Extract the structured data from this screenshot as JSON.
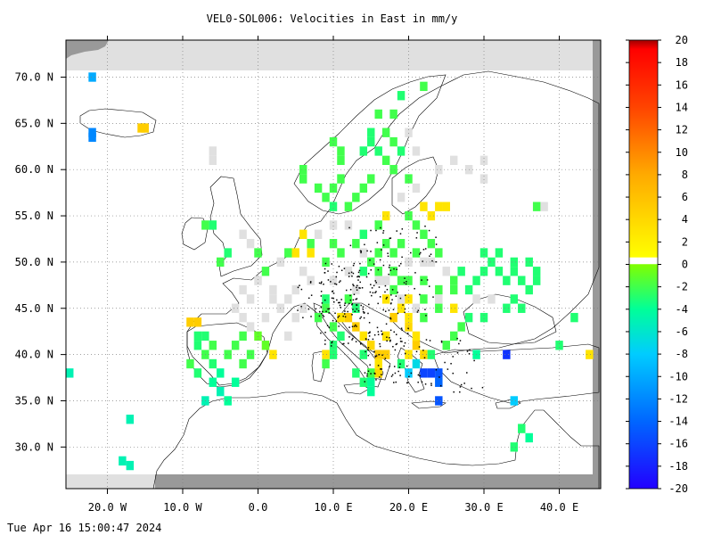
{
  "title": "VEL0-SOL006: Velocities in East in mm/y",
  "timestamp": "Tue Apr 16 15:00:47 2024",
  "map": {
    "lon_range": [
      -25.5,
      45.5
    ],
    "lat_range": [
      25.5,
      74.0
    ],
    "lat_ticks": [
      {
        "value": 30,
        "label": "30.0 N"
      },
      {
        "value": 35,
        "label": "35.0 N"
      },
      {
        "value": 40,
        "label": "40.0 N"
      },
      {
        "value": 45,
        "label": "45.0 N"
      },
      {
        "value": 50,
        "label": "50.0 N"
      },
      {
        "value": 55,
        "label": "55.0 N"
      },
      {
        "value": 60,
        "label": "60.0 N"
      },
      {
        "value": 65,
        "label": "65.0 N"
      },
      {
        "value": 70,
        "label": "70.0 N"
      }
    ],
    "lon_ticks": [
      {
        "value": -20,
        "label": "20.0 W"
      },
      {
        "value": -10,
        "label": "10.0 W"
      },
      {
        "value": 0,
        "label": "0.0"
      },
      {
        "value": 10,
        "label": "10.0 E"
      },
      {
        "value": 20,
        "label": "20.0 E"
      },
      {
        "value": 30,
        "label": "30.0 E"
      },
      {
        "value": 40,
        "label": "40.0 E"
      }
    ],
    "grid": true,
    "colors": {
      "land_mask": "#999999",
      "no_data": "#e0e0e0",
      "grid": "#808080",
      "coast": "#000000"
    }
  },
  "colorbar": {
    "range": [
      -20,
      20
    ],
    "labels": [
      20,
      18,
      16,
      14,
      12,
      10,
      8,
      6,
      4,
      2,
      0,
      -2,
      -4,
      -6,
      -8,
      -10,
      -12,
      -14,
      -16,
      -18,
      -20
    ],
    "label_text": [
      "20",
      "18",
      "16",
      "14",
      "12",
      "10",
      "8",
      "6",
      "4",
      "2",
      "0",
      "-2",
      "-4",
      "-6",
      "-8",
      "-10",
      "-12",
      "-14",
      "-16",
      "-18",
      "-20"
    ],
    "stops": [
      "#0000ff",
      "#00ccff",
      "#00ff80",
      "#80ff00",
      "#ffff00",
      "#ff9900",
      "#ff0000",
      "#cc0000"
    ]
  },
  "chart_data": {
    "type": "heatmap",
    "title": "VEL0-SOL006: Velocities in East in mm/y",
    "xlabel": "",
    "ylabel": "",
    "xlim": [
      -25.5,
      45.5
    ],
    "ylim": [
      25.5,
      74.0
    ],
    "value_range": [
      -20,
      20
    ],
    "cell_size_deg": [
      1.0,
      1.0
    ],
    "cells": [
      {
        "lon": -22,
        "lat": 70,
        "v": -10
      },
      {
        "lon": -22,
        "lat": 64,
        "v": -12
      },
      {
        "lon": -22,
        "lat": 63.5,
        "v": -12
      },
      {
        "lon": -15,
        "lat": 64.5,
        "v": 5
      },
      {
        "lon": -15.5,
        "lat": 64.5,
        "v": 5
      },
      {
        "lon": -25,
        "lat": 38,
        "v": -5
      },
      {
        "lon": -17,
        "lat": 33,
        "v": -5
      },
      {
        "lon": -18,
        "lat": 28.5,
        "v": -5
      },
      {
        "lon": -17,
        "lat": 28,
        "v": -5
      },
      {
        "lon": -9,
        "lat": 43.5,
        "v": 5
      },
      {
        "lon": -8,
        "lat": 43.5,
        "v": 5
      },
      {
        "lon": -8,
        "lat": 42,
        "v": -3
      },
      {
        "lon": -8,
        "lat": 41,
        "v": -3
      },
      {
        "lon": -9,
        "lat": 39,
        "v": -2
      },
      {
        "lon": -8,
        "lat": 38,
        "v": -3
      },
      {
        "lon": -7,
        "lat": 42,
        "v": -3
      },
      {
        "lon": -6,
        "lat": 41,
        "v": -2
      },
      {
        "lon": -7,
        "lat": 40,
        "v": -2
      },
      {
        "lon": -6,
        "lat": 39,
        "v": -3
      },
      {
        "lon": -5,
        "lat": 38,
        "v": -4
      },
      {
        "lon": -6,
        "lat": 37,
        "v": -4
      },
      {
        "lon": -5,
        "lat": 36,
        "v": -5
      },
      {
        "lon": -3,
        "lat": 37,
        "v": -4
      },
      {
        "lon": -4,
        "lat": 40,
        "v": -2
      },
      {
        "lon": -3,
        "lat": 41,
        "v": -2
      },
      {
        "lon": -2,
        "lat": 39,
        "v": -2
      },
      {
        "lon": -1,
        "lat": 40,
        "v": -2
      },
      {
        "lon": -2,
        "lat": 42,
        "v": -2
      },
      {
        "lon": 0,
        "lat": 42,
        "v": -1
      },
      {
        "lon": 1,
        "lat": 41,
        "v": -1
      },
      {
        "lon": -7,
        "lat": 35,
        "v": -5
      },
      {
        "lon": -4,
        "lat": 35,
        "v": -4
      },
      {
        "lon": 2,
        "lat": 40,
        "v": 3
      },
      {
        "lon": -5,
        "lat": 50,
        "v": -2
      },
      {
        "lon": -4,
        "lat": 51,
        "v": -3
      },
      {
        "lon": -6,
        "lat": 54,
        "v": -3
      },
      {
        "lon": -7,
        "lat": 54,
        "v": -2
      },
      {
        "lon": 0,
        "lat": 51,
        "v": -2
      },
      {
        "lon": 1,
        "lat": 49,
        "v": -2
      },
      {
        "lon": 4,
        "lat": 51,
        "v": -2
      },
      {
        "lon": 6,
        "lat": 53,
        "v": 3
      },
      {
        "lon": 5,
        "lat": 51,
        "v": 3
      },
      {
        "lon": 7,
        "lat": 51,
        "v": 3
      },
      {
        "lon": 7,
        "lat": 52,
        "v": -2
      },
      {
        "lon": 10,
        "lat": 52,
        "v": -2
      },
      {
        "lon": 9,
        "lat": 50,
        "v": -2
      },
      {
        "lon": 11,
        "lat": 51,
        "v": -2
      },
      {
        "lon": 13,
        "lat": 52,
        "v": -2
      },
      {
        "lon": 14,
        "lat": 53,
        "v": -3
      },
      {
        "lon": 16,
        "lat": 54,
        "v": -2
      },
      {
        "lon": 17,
        "lat": 55,
        "v": 3
      },
      {
        "lon": 20,
        "lat": 55,
        "v": -2
      },
      {
        "lon": 22,
        "lat": 56,
        "v": 3
      },
      {
        "lon": 23,
        "lat": 55,
        "v": 3
      },
      {
        "lon": 24,
        "lat": 56,
        "v": 3
      },
      {
        "lon": 25,
        "lat": 56,
        "v": 3
      },
      {
        "lon": 21,
        "lat": 54,
        "v": -2
      },
      {
        "lon": 22,
        "lat": 53,
        "v": -2
      },
      {
        "lon": 23,
        "lat": 52,
        "v": -2
      },
      {
        "lon": 24,
        "lat": 51,
        "v": -2
      },
      {
        "lon": 21,
        "lat": 51,
        "v": -2
      },
      {
        "lon": 19,
        "lat": 52,
        "v": -2
      },
      {
        "lon": 18,
        "lat": 51,
        "v": -2
      },
      {
        "lon": 17,
        "lat": 52,
        "v": -2
      },
      {
        "lon": 16,
        "lat": 51,
        "v": -2
      },
      {
        "lon": 15,
        "lat": 50,
        "v": -2
      },
      {
        "lon": 14,
        "lat": 49,
        "v": -3
      },
      {
        "lon": 16,
        "lat": 49,
        "v": -2
      },
      {
        "lon": 18,
        "lat": 49,
        "v": -2
      },
      {
        "lon": 20,
        "lat": 48,
        "v": -2
      },
      {
        "lon": 22,
        "lat": 48,
        "v": -2
      },
      {
        "lon": 24,
        "lat": 47,
        "v": -2
      },
      {
        "lon": 26,
        "lat": 47,
        "v": -2
      },
      {
        "lon": 26,
        "lat": 48,
        "v": -2
      },
      {
        "lon": 27,
        "lat": 49,
        "v": -3
      },
      {
        "lon": 28,
        "lat": 47,
        "v": -3
      },
      {
        "lon": 29,
        "lat": 48,
        "v": -3
      },
      {
        "lon": 30,
        "lat": 49,
        "v": -3
      },
      {
        "lon": 31,
        "lat": 50,
        "v": -3
      },
      {
        "lon": 32,
        "lat": 49,
        "v": -3
      },
      {
        "lon": 33,
        "lat": 48,
        "v": -3
      },
      {
        "lon": 34,
        "lat": 49,
        "v": -3
      },
      {
        "lon": 35,
        "lat": 48,
        "v": -3
      },
      {
        "lon": 36,
        "lat": 47,
        "v": -3
      },
      {
        "lon": 34,
        "lat": 46,
        "v": -3
      },
      {
        "lon": 33,
        "lat": 45,
        "v": -3
      },
      {
        "lon": 35,
        "lat": 45,
        "v": -3
      },
      {
        "lon": 36,
        "lat": 50,
        "v": -3
      },
      {
        "lon": 37,
        "lat": 49,
        "v": -3
      },
      {
        "lon": 37,
        "lat": 48,
        "v": -3
      },
      {
        "lon": 30,
        "lat": 51,
        "v": -3
      },
      {
        "lon": 32,
        "lat": 51,
        "v": -3
      },
      {
        "lon": 34,
        "lat": 50,
        "v": -3
      },
      {
        "lon": 37,
        "lat": 56,
        "v": -2
      },
      {
        "lon": 42,
        "lat": 44,
        "v": -3
      },
      {
        "lon": 40,
        "lat": 41,
        "v": -3
      },
      {
        "lon": 44,
        "lat": 40,
        "v": 3
      },
      {
        "lon": 10,
        "lat": 63,
        "v": -2
      },
      {
        "lon": 11,
        "lat": 62,
        "v": -2
      },
      {
        "lon": 11,
        "lat": 61,
        "v": -2
      },
      {
        "lon": 11,
        "lat": 59,
        "v": -2
      },
      {
        "lon": 10,
        "lat": 58,
        "v": -2
      },
      {
        "lon": 9,
        "lat": 57,
        "v": -2
      },
      {
        "lon": 10,
        "lat": 56,
        "v": -3
      },
      {
        "lon": 12,
        "lat": 56,
        "v": -2
      },
      {
        "lon": 13,
        "lat": 57,
        "v": -2
      },
      {
        "lon": 14,
        "lat": 58,
        "v": -2
      },
      {
        "lon": 15,
        "lat": 59,
        "v": -2
      },
      {
        "lon": 14,
        "lat": 62,
        "v": -3
      },
      {
        "lon": 15,
        "lat": 63,
        "v": -3
      },
      {
        "lon": 15,
        "lat": 64,
        "v": -3
      },
      {
        "lon": 16,
        "lat": 62,
        "v": -3
      },
      {
        "lon": 17,
        "lat": 64,
        "v": -2
      },
      {
        "lon": 18,
        "lat": 63,
        "v": -2
      },
      {
        "lon": 17,
        "lat": 61,
        "v": -2
      },
      {
        "lon": 18,
        "lat": 60,
        "v": -2
      },
      {
        "lon": 19,
        "lat": 62,
        "v": -3
      },
      {
        "lon": 18,
        "lat": 66,
        "v": -2
      },
      {
        "lon": 19,
        "lat": 68,
        "v": -3
      },
      {
        "lon": 22,
        "lat": 69,
        "v": -2
      },
      {
        "lon": 6,
        "lat": 60,
        "v": -2
      },
      {
        "lon": 6,
        "lat": 59,
        "v": -2
      },
      {
        "lon": 8,
        "lat": 58,
        "v": -2
      },
      {
        "lon": 16,
        "lat": 66,
        "v": -2
      },
      {
        "lon": 20,
        "lat": 59,
        "v": -2
      },
      {
        "lon": 12,
        "lat": 46,
        "v": -2
      },
      {
        "lon": 13,
        "lat": 45,
        "v": -3
      },
      {
        "lon": 11,
        "lat": 44,
        "v": 3
      },
      {
        "lon": 12,
        "lat": 44,
        "v": 5
      },
      {
        "lon": 13,
        "lat": 43,
        "v": 5
      },
      {
        "lon": 14,
        "lat": 42,
        "v": 3
      },
      {
        "lon": 15,
        "lat": 41,
        "v": 4
      },
      {
        "lon": 16,
        "lat": 40,
        "v": 5
      },
      {
        "lon": 17,
        "lat": 40,
        "v": 5
      },
      {
        "lon": 16,
        "lat": 39,
        "v": 3
      },
      {
        "lon": 16,
        "lat": 38,
        "v": 4
      },
      {
        "lon": 15,
        "lat": 38,
        "v": -2
      },
      {
        "lon": 14,
        "lat": 37,
        "v": -3
      },
      {
        "lon": 15,
        "lat": 37,
        "v": -4
      },
      {
        "lon": 13,
        "lat": 38,
        "v": -3
      },
      {
        "lon": 10,
        "lat": 41,
        "v": -3
      },
      {
        "lon": 11,
        "lat": 42,
        "v": -3
      },
      {
        "lon": 10,
        "lat": 40,
        "v": -3
      },
      {
        "lon": 9,
        "lat": 40,
        "v": 3
      },
      {
        "lon": 9,
        "lat": 39,
        "v": -2
      },
      {
        "lon": 10,
        "lat": 43,
        "v": -2
      },
      {
        "lon": 8,
        "lat": 44,
        "v": -2
      },
      {
        "lon": 9,
        "lat": 45,
        "v": -2
      },
      {
        "lon": 14,
        "lat": 40,
        "v": -3
      },
      {
        "lon": 15,
        "lat": 36,
        "v": -4
      },
      {
        "lon": 17,
        "lat": 42,
        "v": 3
      },
      {
        "lon": 18,
        "lat": 44,
        "v": 5
      },
      {
        "lon": 19,
        "lat": 45,
        "v": 3
      },
      {
        "lon": 20,
        "lat": 44,
        "v": 3
      },
      {
        "lon": 20,
        "lat": 43,
        "v": 4
      },
      {
        "lon": 21,
        "lat": 42,
        "v": 3
      },
      {
        "lon": 21,
        "lat": 41,
        "v": 5
      },
      {
        "lon": 20,
        "lat": 40,
        "v": 3
      },
      {
        "lon": 22,
        "lat": 40,
        "v": 4
      },
      {
        "lon": 21,
        "lat": 39,
        "v": -7
      },
      {
        "lon": 22,
        "lat": 38,
        "v": -16
      },
      {
        "lon": 23,
        "lat": 38,
        "v": -16
      },
      {
        "lon": 24,
        "lat": 38,
        "v": -15
      },
      {
        "lon": 24,
        "lat": 37,
        "v": -14
      },
      {
        "lon": 20,
        "lat": 38,
        "v": -8
      },
      {
        "lon": 19,
        "lat": 39,
        "v": -3
      },
      {
        "lon": 23,
        "lat": 40,
        "v": -3
      },
      {
        "lon": 24,
        "lat": 35,
        "v": -15
      },
      {
        "lon": 25,
        "lat": 41,
        "v": -2
      },
      {
        "lon": 26,
        "lat": 42,
        "v": -2
      },
      {
        "lon": 27,
        "lat": 43,
        "v": -2
      },
      {
        "lon": 22,
        "lat": 46,
        "v": -2
      },
      {
        "lon": 24,
        "lat": 45,
        "v": -2
      },
      {
        "lon": 26,
        "lat": 45,
        "v": 3
      },
      {
        "lon": 29,
        "lat": 40,
        "v": -4
      },
      {
        "lon": 33,
        "lat": 40,
        "v": -17
      },
      {
        "lon": 34,
        "lat": 35,
        "v": -8
      },
      {
        "lon": 35,
        "lat": 32,
        "v": -3
      },
      {
        "lon": 36,
        "lat": 31,
        "v": -4
      },
      {
        "lon": 34,
        "lat": 30,
        "v": -3
      },
      {
        "lon": 30,
        "lat": 44,
        "v": -3
      },
      {
        "lon": 28,
        "lat": 44,
        "v": -3
      },
      {
        "lon": 19,
        "lat": 48,
        "v": -2
      },
      {
        "lon": 18,
        "lat": 47,
        "v": -2
      },
      {
        "lon": 17,
        "lat": 46,
        "v": 3
      },
      {
        "lon": 20,
        "lat": 46,
        "v": 3
      },
      {
        "lon": 22,
        "lat": 44,
        "v": -2
      },
      {
        "lon": 9,
        "lat": 46,
        "v": -3
      }
    ],
    "no_data_cells": [
      {
        "lon": -6,
        "lat": 62
      },
      {
        "lon": -6,
        "lat": 61
      },
      {
        "lon": 38,
        "lat": 56
      },
      {
        "lon": 30,
        "lat": 61
      },
      {
        "lon": 30,
        "lat": 59
      },
      {
        "lon": 5,
        "lat": 47
      },
      {
        "lon": 4,
        "lat": 46
      },
      {
        "lon": 3,
        "lat": 45
      },
      {
        "lon": 2,
        "lat": 47
      },
      {
        "lon": 6,
        "lat": 49
      },
      {
        "lon": 3,
        "lat": 50
      },
      {
        "lon": -1,
        "lat": 46
      },
      {
        "lon": 1,
        "lat": 44
      },
      {
        "lon": 2,
        "lat": 46
      },
      {
        "lon": 7,
        "lat": 48
      },
      {
        "lon": -2,
        "lat": 44
      },
      {
        "lon": -3,
        "lat": 45
      },
      {
        "lon": -1,
        "lat": 43
      },
      {
        "lon": 5,
        "lat": 44
      },
      {
        "lon": 4,
        "lat": 42
      },
      {
        "lon": 23,
        "lat": 50
      },
      {
        "lon": 25,
        "lat": 49
      },
      {
        "lon": 24,
        "lat": 46
      },
      {
        "lon": 21,
        "lat": 45
      },
      {
        "lon": 19,
        "lat": 46
      },
      {
        "lon": 12,
        "lat": 49
      },
      {
        "lon": 10,
        "lat": 48
      },
      {
        "lon": 13,
        "lat": 47
      },
      {
        "lon": 16,
        "lat": 48
      },
      {
        "lon": 17,
        "lat": 48
      },
      {
        "lon": 20,
        "lat": 50
      },
      {
        "lon": 22,
        "lat": 50
      },
      {
        "lon": 14,
        "lat": 51
      },
      {
        "lon": 8,
        "lat": 53
      },
      {
        "lon": 10,
        "lat": 54
      },
      {
        "lon": 12,
        "lat": 54
      },
      {
        "lon": 19,
        "lat": 57
      },
      {
        "lon": 21,
        "lat": 58
      },
      {
        "lon": 24,
        "lat": 60
      },
      {
        "lon": 26,
        "lat": 61
      },
      {
        "lon": 28,
        "lat": 60
      },
      {
        "lon": 21,
        "lat": 62
      },
      {
        "lon": 20,
        "lat": 64
      },
      {
        "lon": -1,
        "lat": 52
      },
      {
        "lon": -2,
        "lat": 53
      },
      {
        "lon": -2,
        "lat": 47
      },
      {
        "lon": 0,
        "lat": 48
      },
      {
        "lon": 6,
        "lat": 45
      },
      {
        "lon": 29,
        "lat": 46
      },
      {
        "lon": 31,
        "lat": 46
      }
    ]
  }
}
